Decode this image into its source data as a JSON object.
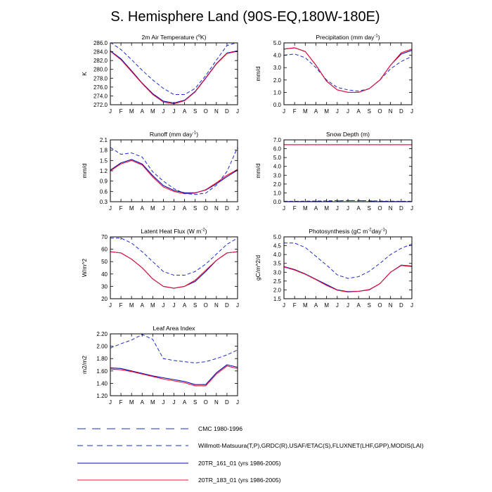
{
  "title": "S. Hemisphere Land (90S-EQ,180W-180E)",
  "months": [
    "J",
    "F",
    "M",
    "A",
    "M",
    "J",
    "J",
    "A",
    "S",
    "O",
    "N",
    "D",
    "J"
  ],
  "colors": {
    "cmc": "#1a2ccf",
    "obs": "#1a2ccf",
    "run161": "#0a0aa8",
    "run183": "#ee1133",
    "axis": "#000000"
  },
  "legend": [
    {
      "key": "cmc",
      "label": "CMC 1980-1996",
      "style": "longdash"
    },
    {
      "key": "obs",
      "label": "Willmott-Matsuura(T,P),GRDC(R),USAF/ETAC(S),FLUXNET(LHF,GPP),MODIS(LAI)",
      "style": "dash"
    },
    {
      "key": "run161",
      "label": "20TR_161_01 (yrs 1986-2005)",
      "style": "solid"
    },
    {
      "key": "run183",
      "label": "20TR_183_01 (yrs 1986-2005)",
      "style": "solid"
    }
  ],
  "chart_data": [
    {
      "type": "line",
      "title": "2m Air Temperature (°K)",
      "title_parts": [
        "2m Air Temperature (",
        "o",
        "K)"
      ],
      "ylabel": "K",
      "ylim": [
        272,
        286
      ],
      "yticks": [
        272,
        274,
        276,
        278,
        280,
        282,
        284,
        286
      ],
      "ytick_labels": [
        "272.0",
        "274.0",
        "276.0",
        "278.0",
        "280.0",
        "282.0",
        "284.0",
        "286.0"
      ],
      "series": [
        {
          "name": "CMC 1980-1996",
          "key": "cmc",
          "values": []
        },
        {
          "name": "Willmott-Matsuura",
          "key": "obs",
          "values": [
            286.1,
            284.5,
            282.2,
            279.8,
            277.6,
            275.7,
            274.3,
            274.3,
            275.7,
            278.6,
            282.1,
            285.4,
            286.1
          ]
        },
        {
          "name": "20TR_161_01",
          "key": "run161",
          "values": [
            284.2,
            282.4,
            279.7,
            276.9,
            274.5,
            272.8,
            272.4,
            273.0,
            275.0,
            278.1,
            281.3,
            283.7,
            284.2
          ]
        },
        {
          "name": "20TR_183_01",
          "key": "run183",
          "values": [
            284.1,
            282.2,
            279.5,
            276.8,
            274.3,
            272.6,
            272.2,
            272.9,
            274.9,
            278.0,
            281.2,
            283.6,
            284.1
          ]
        }
      ]
    },
    {
      "type": "line",
      "title": "Precipitation (mm day⁻¹)",
      "title_parts": [
        "Precipitation (mm day",
        "-1",
        ")"
      ],
      "ylabel": "mm/d",
      "ylim": [
        0,
        5
      ],
      "yticks": [
        0,
        1,
        2,
        3,
        4,
        5
      ],
      "ytick_labels": [
        "0.0",
        "1.0",
        "2.0",
        "3.0",
        "4.0",
        "5.0"
      ],
      "series": [
        {
          "name": "CMC 1980-1996",
          "key": "cmc",
          "values": []
        },
        {
          "name": "Willmott-Matsuura",
          "key": "obs",
          "values": [
            4.0,
            4.1,
            3.8,
            3.0,
            2.0,
            1.4,
            1.2,
            1.1,
            1.3,
            2.0,
            2.9,
            3.5,
            3.9
          ]
        },
        {
          "name": "20TR_161_01",
          "key": "run161",
          "values": [
            4.5,
            4.6,
            4.3,
            3.2,
            1.9,
            1.2,
            1.0,
            1.0,
            1.3,
            2.0,
            3.2,
            4.1,
            4.4
          ]
        },
        {
          "name": "20TR_183_01",
          "key": "run183",
          "values": [
            4.5,
            4.6,
            4.3,
            3.2,
            1.9,
            1.2,
            1.0,
            1.0,
            1.3,
            2.0,
            3.2,
            4.2,
            4.5
          ]
        }
      ]
    },
    {
      "type": "line",
      "title": "Runoff (mm day⁻¹)",
      "title_parts": [
        "Runoff (mm day",
        "-1",
        ")"
      ],
      "ylabel": "mm/d",
      "ylim": [
        0.3,
        2.1
      ],
      "yticks": [
        0.3,
        0.6,
        0.9,
        1.2,
        1.5,
        1.8,
        2.1
      ],
      "ytick_labels": [
        "0.3",
        "0.6",
        "0.9",
        "1.2",
        "1.5",
        "1.8",
        "2.1"
      ],
      "series": [
        {
          "name": "CMC 1980-1996",
          "key": "cmc",
          "values": []
        },
        {
          "name": "GRDC",
          "key": "obs",
          "values": [
            1.88,
            1.68,
            1.72,
            1.6,
            1.17,
            0.9,
            0.68,
            0.54,
            0.51,
            0.55,
            0.78,
            1.18,
            1.88
          ]
        },
        {
          "name": "20TR_161_01",
          "key": "run161",
          "values": [
            1.22,
            1.43,
            1.53,
            1.4,
            1.06,
            0.77,
            0.63,
            0.56,
            0.56,
            0.64,
            0.82,
            1.03,
            1.22
          ]
        },
        {
          "name": "20TR_183_01",
          "key": "run183",
          "values": [
            1.2,
            1.4,
            1.5,
            1.37,
            1.02,
            0.73,
            0.6,
            0.53,
            0.55,
            0.65,
            0.85,
            1.07,
            1.24
          ]
        }
      ]
    },
    {
      "type": "line",
      "title": "Snow Depth (m)",
      "title_parts": [
        "Snow Depth (m)"
      ],
      "ylabel": "mm/d",
      "ylim": [
        0,
        7
      ],
      "yticks": [
        0,
        1,
        2,
        3,
        4,
        5,
        6,
        7
      ],
      "ytick_labels": [
        "0.0",
        "1.0",
        "2.0",
        "3.0",
        "4.0",
        "5.0",
        "6.0",
        "7.0"
      ],
      "series": [
        {
          "name": "CMC 1980-1996",
          "key": "cmc",
          "values": [
            0.02,
            0.02,
            0.02,
            0.03,
            0.05,
            0.09,
            0.12,
            0.12,
            0.09,
            0.05,
            0.03,
            0.02,
            0.02
          ]
        },
        {
          "name": "USAF/ETAC",
          "key": "obs",
          "values": [
            0.05,
            0.05,
            0.06,
            0.08,
            0.1,
            0.12,
            0.13,
            0.13,
            0.11,
            0.08,
            0.06,
            0.05,
            0.05
          ]
        },
        {
          "name": "20TR_161_01",
          "key": "run161",
          "values": [
            6.45,
            6.45,
            6.45,
            6.45,
            6.45,
            6.45,
            6.45,
            6.45,
            6.45,
            6.45,
            6.45,
            6.45,
            6.45
          ]
        },
        {
          "name": "20TR_183_01",
          "key": "run183",
          "values": [
            6.45,
            6.45,
            6.45,
            6.45,
            6.45,
            6.45,
            6.45,
            6.45,
            6.45,
            6.45,
            6.45,
            6.45,
            6.45
          ]
        }
      ]
    },
    {
      "type": "line",
      "title": "Latent Heat Flux (W m⁻²)",
      "title_parts": [
        "Latent Heat Flux (W m",
        "-2",
        ")"
      ],
      "ylabel": "W/m^2",
      "ylim": [
        20,
        70
      ],
      "yticks": [
        20,
        30,
        40,
        50,
        60,
        70
      ],
      "ytick_labels": [
        "20",
        "30",
        "40",
        "50",
        "60",
        "70"
      ],
      "series": [
        {
          "name": "CMC 1980-1996",
          "key": "cmc",
          "values": []
        },
        {
          "name": "FLUXNET",
          "key": "obs",
          "values": [
            69,
            69,
            65,
            58,
            50,
            42,
            39,
            39,
            42,
            48,
            56,
            64,
            69
          ]
        },
        {
          "name": "20TR_161_01",
          "key": "run161",
          "values": [
            58,
            57,
            52,
            45,
            36,
            30,
            28.5,
            30,
            34,
            42,
            51,
            57,
            58
          ]
        },
        {
          "name": "20TR_183_01",
          "key": "run183",
          "values": [
            58,
            57,
            52,
            45,
            36,
            30,
            28.5,
            30,
            35,
            43,
            51,
            57,
            58
          ]
        }
      ]
    },
    {
      "type": "line",
      "title": "Photosynthesis (gC m⁻²day⁻¹)",
      "title_parts": [
        "Photosynthesis (gC m",
        "-2",
        "day",
        "-1",
        ")"
      ],
      "ylabel": "gC/m^2/d",
      "ylim": [
        1.5,
        5.0
      ],
      "yticks": [
        1.5,
        2.0,
        2.5,
        3.0,
        3.5,
        4.0,
        4.5,
        5.0
      ],
      "ytick_labels": [
        "1.5",
        "2.0",
        "2.5",
        "3.0",
        "3.5",
        "4.0",
        "4.5",
        "5.0"
      ],
      "series": [
        {
          "name": "CMC 1980-1996",
          "key": "cmc",
          "values": []
        },
        {
          "name": "FLUXNET",
          "key": "obs",
          "values": [
            4.65,
            4.65,
            4.4,
            3.9,
            3.4,
            2.85,
            2.65,
            2.75,
            3.05,
            3.5,
            4.0,
            4.35,
            4.6
          ]
        },
        {
          "name": "20TR_161_01",
          "key": "run161",
          "values": [
            3.32,
            3.15,
            2.9,
            2.6,
            2.3,
            2.0,
            1.9,
            1.92,
            2.0,
            2.35,
            3.0,
            3.4,
            3.35
          ]
        },
        {
          "name": "20TR_183_01",
          "key": "run183",
          "values": [
            3.3,
            3.12,
            2.88,
            2.58,
            2.25,
            1.98,
            1.88,
            1.92,
            2.02,
            2.35,
            3.0,
            3.38,
            3.32
          ]
        }
      ]
    },
    {
      "type": "line",
      "title": "Leaf Area Index",
      "title_parts": [
        "Leaf Area Index"
      ],
      "ylabel": "m2/m2",
      "ylim": [
        1.2,
        2.2
      ],
      "yticks": [
        1.2,
        1.4,
        1.6,
        1.8,
        2.0,
        2.2
      ],
      "ytick_labels": [
        "1.20",
        "1.40",
        "1.60",
        "1.80",
        "2.00",
        "2.20"
      ],
      "series": [
        {
          "name": "CMC 1980-1996",
          "key": "cmc",
          "values": []
        },
        {
          "name": "MODIS",
          "key": "obs",
          "values": [
            1.97,
            2.04,
            2.1,
            2.19,
            2.11,
            1.8,
            1.77,
            1.75,
            1.73,
            1.75,
            1.8,
            1.86,
            1.94
          ]
        },
        {
          "name": "20TR_161_01",
          "key": "run161",
          "values": [
            1.65,
            1.64,
            1.6,
            1.56,
            1.52,
            1.49,
            1.46,
            1.43,
            1.38,
            1.38,
            1.57,
            1.7,
            1.66
          ]
        },
        {
          "name": "20TR_183_01",
          "key": "run183",
          "values": [
            1.63,
            1.62,
            1.59,
            1.55,
            1.51,
            1.47,
            1.44,
            1.41,
            1.36,
            1.36,
            1.55,
            1.68,
            1.64
          ]
        }
      ]
    }
  ]
}
